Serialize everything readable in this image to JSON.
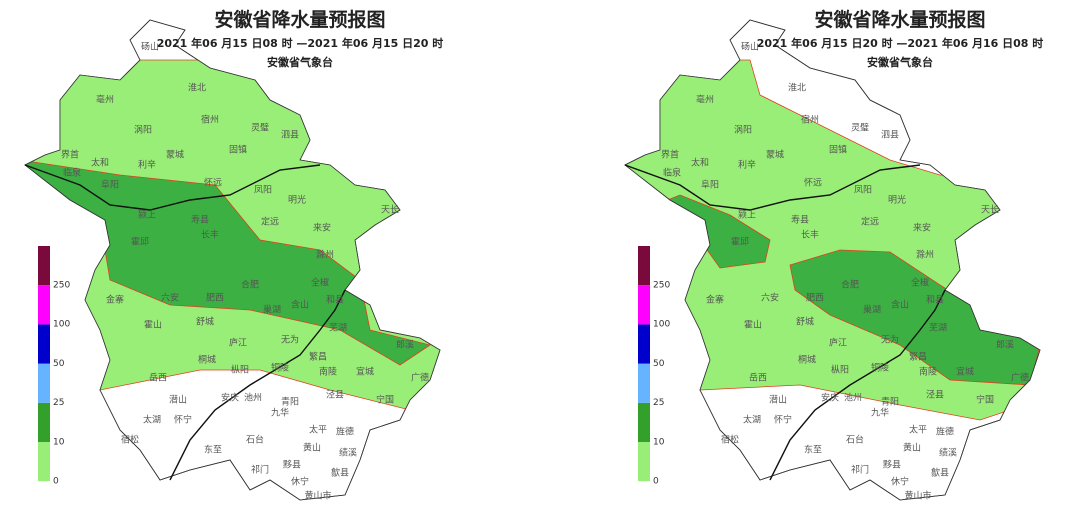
{
  "maps": [
    {
      "title": "安徽省降水量预报图",
      "period": "2021 年06 月15 日08 时 —2021 年06 月15 日20 时",
      "issuer": "安徽省气象台"
    },
    {
      "title": "安徽省降水量预报图",
      "period": "2021 年06 月15 日20 时 —2021 年06 月16 日08 时",
      "issuer": "安徽省气象台"
    }
  ],
  "legend": {
    "ticks": [
      "0",
      "10",
      "25",
      "50",
      "100",
      "250"
    ]
  },
  "places": [
    "砀山",
    "亳州",
    "淮北",
    "涡阳",
    "宿州",
    "灵璧",
    "泗县",
    "界首",
    "太和",
    "利辛",
    "蒙城",
    "固镇",
    "临泉",
    "阜阳",
    "怀远",
    "凤阳",
    "明光",
    "天长",
    "颍上",
    "寿县",
    "定远",
    "来安",
    "霍邱",
    "长丰",
    "滁州",
    "全椒",
    "金寨",
    "六安",
    "合肥",
    "肥西",
    "巢湖",
    "含山",
    "和县",
    "霍山",
    "舒城",
    "庐江",
    "无为",
    "芜湖",
    "繁昌",
    "宣城",
    "郎溪",
    "岳西",
    "桐城",
    "枞阳",
    "铜陵",
    "南陵",
    "广德",
    "太湖",
    "潜山",
    "安庆",
    "池州",
    "青阳",
    "泾县",
    "宁国",
    "宿松",
    "怀宁",
    "东至",
    "石台",
    "九华",
    "太平",
    "旌德",
    "黄山",
    "绩溪",
    "祁门",
    "黟县",
    "歙县",
    "休宁",
    "黄山市"
  ]
}
